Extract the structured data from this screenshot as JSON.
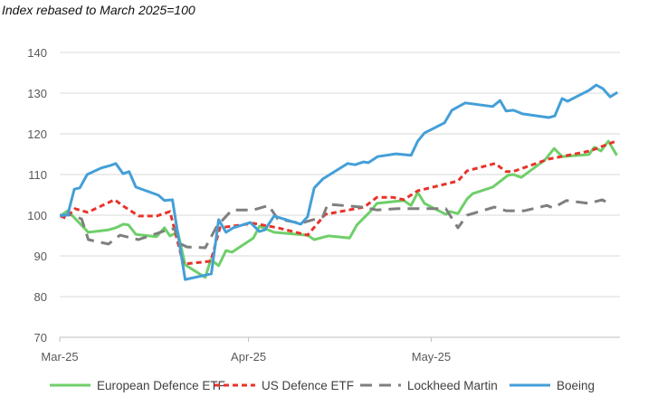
{
  "chart_data": {
    "type": "line",
    "title": "Index rebased to March 2025=100",
    "xlabel": "",
    "ylabel": "",
    "xlim": [
      0,
      92
    ],
    "ylim": [
      70,
      140
    ],
    "yticks": [
      70,
      80,
      90,
      100,
      110,
      120,
      130,
      140
    ],
    "xticks": [
      {
        "label": "Mar-25",
        "day": 0
      },
      {
        "label": "Apr-25",
        "day": 31
      },
      {
        "label": "May-25",
        "day": 61
      }
    ],
    "grid": "horizontal",
    "legend_position": "bottom",
    "series": [
      {
        "name": "European Defence ETF",
        "color": "#6fcf6a",
        "style": "solid",
        "points": [
          [
            0.1,
            99.8
          ],
          [
            1.3,
            101.1
          ],
          [
            4.7,
            95.8
          ],
          [
            8,
            96.4
          ],
          [
            9.2,
            96.9
          ],
          [
            10.5,
            97.8
          ],
          [
            11.3,
            97.6
          ],
          [
            12.5,
            95.3
          ],
          [
            15.9,
            94.7
          ],
          [
            17.2,
            96.9
          ],
          [
            18.1,
            94.9
          ],
          [
            19.4,
            95.8
          ],
          [
            20.6,
            87.8
          ],
          [
            23.9,
            84.7
          ],
          [
            24.8,
            89.1
          ],
          [
            26.1,
            87.6
          ],
          [
            27.3,
            91.3
          ],
          [
            28.3,
            90.9
          ],
          [
            31.8,
            94.4
          ],
          [
            32.8,
            97.3
          ],
          [
            35.2,
            95.8
          ],
          [
            40.7,
            95.1
          ],
          [
            41.8,
            94
          ],
          [
            44.1,
            94.9
          ],
          [
            47.6,
            94.4
          ],
          [
            48.8,
            97.6
          ],
          [
            51,
            100.9
          ],
          [
            52.1,
            102.9
          ],
          [
            56.5,
            103.6
          ],
          [
            57.7,
            102.4
          ],
          [
            58.8,
            105.6
          ],
          [
            59.9,
            102.9
          ],
          [
            63.4,
            100.2
          ],
          [
            64.1,
            100.9
          ],
          [
            65.4,
            100.4
          ],
          [
            66.9,
            104
          ],
          [
            67.8,
            105.3
          ],
          [
            71.1,
            106.9
          ],
          [
            73.6,
            109.8
          ],
          [
            74.5,
            110
          ],
          [
            75.8,
            109.3
          ],
          [
            79.7,
            113.6
          ],
          [
            81.2,
            116.4
          ],
          [
            82.5,
            114.4
          ],
          [
            86.9,
            114.9
          ],
          [
            87.8,
            116.7
          ],
          [
            88.9,
            115.8
          ],
          [
            90.1,
            118.2
          ],
          [
            91.5,
            114.7
          ]
        ]
      },
      {
        "name": "US Defence ETF",
        "color": "#e8332a",
        "style": "dashed",
        "points": [
          [
            0.1,
            99.8
          ],
          [
            1,
            99.3
          ],
          [
            2.5,
            101.6
          ],
          [
            4.6,
            100.7
          ],
          [
            9,
            103.8
          ],
          [
            10.5,
            102.2
          ],
          [
            13,
            99.8
          ],
          [
            15.9,
            99.8
          ],
          [
            18.1,
            100.9
          ],
          [
            20.3,
            88
          ],
          [
            24.8,
            88.7
          ],
          [
            26.3,
            96.9
          ],
          [
            31.8,
            98
          ],
          [
            35.8,
            96.9
          ],
          [
            40.7,
            95.1
          ],
          [
            43.6,
            100.2
          ],
          [
            50,
            102
          ],
          [
            52.1,
            104.4
          ],
          [
            54.7,
            104.4
          ],
          [
            56.5,
            103.8
          ],
          [
            58.8,
            106
          ],
          [
            65.4,
            108.4
          ],
          [
            66.9,
            110.9
          ],
          [
            71.5,
            112.7
          ],
          [
            73.3,
            110.7
          ],
          [
            74.4,
            110.7
          ],
          [
            80.3,
            113.8
          ],
          [
            87.1,
            115.8
          ],
          [
            91.5,
            118.3
          ]
        ]
      },
      {
        "name": "Lockheed Martin",
        "color": "#7f7f7f",
        "style": "long-dash",
        "points": [
          [
            0.1,
            99.8
          ],
          [
            1.6,
            100.2
          ],
          [
            3.6,
            99.1
          ],
          [
            4.7,
            94
          ],
          [
            8,
            92.9
          ],
          [
            9.9,
            95.1
          ],
          [
            12.9,
            94
          ],
          [
            16.9,
            96
          ],
          [
            18.8,
            96.7
          ],
          [
            19.9,
            92.9
          ],
          [
            20.9,
            92.2
          ],
          [
            23.9,
            92
          ],
          [
            25.8,
            97.3
          ],
          [
            28.3,
            101.3
          ],
          [
            31.8,
            101.3
          ],
          [
            34.3,
            102.4
          ],
          [
            35.8,
            99.1
          ],
          [
            39.6,
            98
          ],
          [
            43.2,
            99.6
          ],
          [
            44,
            102.7
          ],
          [
            49.6,
            102
          ],
          [
            52.1,
            101.3
          ],
          [
            55.5,
            101.6
          ],
          [
            63.4,
            101.6
          ],
          [
            65.4,
            96.9
          ],
          [
            66.9,
            100
          ],
          [
            71.4,
            102
          ],
          [
            73.3,
            101.1
          ],
          [
            76.3,
            101.1
          ],
          [
            80,
            102.4
          ],
          [
            81,
            101.8
          ],
          [
            83.2,
            103.6
          ],
          [
            86.9,
            102.9
          ],
          [
            89.1,
            103.8
          ],
          [
            89.9,
            103.1
          ]
        ]
      },
      {
        "name": "Boeing",
        "color": "#449fd8",
        "style": "solid",
        "points": [
          [
            0,
            100
          ],
          [
            1.3,
            100
          ],
          [
            2.4,
            106.4
          ],
          [
            3.3,
            106.7
          ],
          [
            4.5,
            110
          ],
          [
            6.8,
            111.6
          ],
          [
            8.3,
            112.2
          ],
          [
            9.2,
            112.7
          ],
          [
            10.4,
            110.2
          ],
          [
            11.4,
            110.7
          ],
          [
            12.5,
            106.9
          ],
          [
            16.2,
            104.9
          ],
          [
            17.2,
            103.6
          ],
          [
            18.5,
            103.8
          ],
          [
            20.6,
            84.2
          ],
          [
            24.9,
            85.6
          ],
          [
            26.1,
            98.9
          ],
          [
            27.3,
            95.8
          ],
          [
            28.5,
            96.9
          ],
          [
            31.3,
            98.2
          ],
          [
            32.8,
            96
          ],
          [
            33.7,
            96.4
          ],
          [
            35.2,
            99.8
          ],
          [
            39.6,
            97.8
          ],
          [
            40.7,
            99.6
          ],
          [
            41.8,
            106.7
          ],
          [
            43.2,
            108.9
          ],
          [
            47.3,
            112.7
          ],
          [
            48.5,
            112.4
          ],
          [
            49.9,
            113.1
          ],
          [
            50.7,
            112.9
          ],
          [
            52.2,
            114.4
          ],
          [
            55.2,
            115.1
          ],
          [
            57.7,
            114.7
          ],
          [
            58.8,
            118.2
          ],
          [
            59.9,
            120.2
          ],
          [
            63.2,
            122.7
          ],
          [
            64.4,
            125.8
          ],
          [
            66.6,
            127.6
          ],
          [
            71.1,
            126.7
          ],
          [
            72.3,
            128.2
          ],
          [
            73.3,
            125.6
          ],
          [
            74.5,
            125.8
          ],
          [
            76,
            124.9
          ],
          [
            80.3,
            124
          ],
          [
            81.3,
            124.4
          ],
          [
            82.5,
            128.7
          ],
          [
            83.4,
            128
          ],
          [
            86.9,
            130.7
          ],
          [
            88.1,
            132
          ],
          [
            89.2,
            131.1
          ],
          [
            90.4,
            129.1
          ],
          [
            91.6,
            130.2
          ]
        ]
      }
    ]
  }
}
